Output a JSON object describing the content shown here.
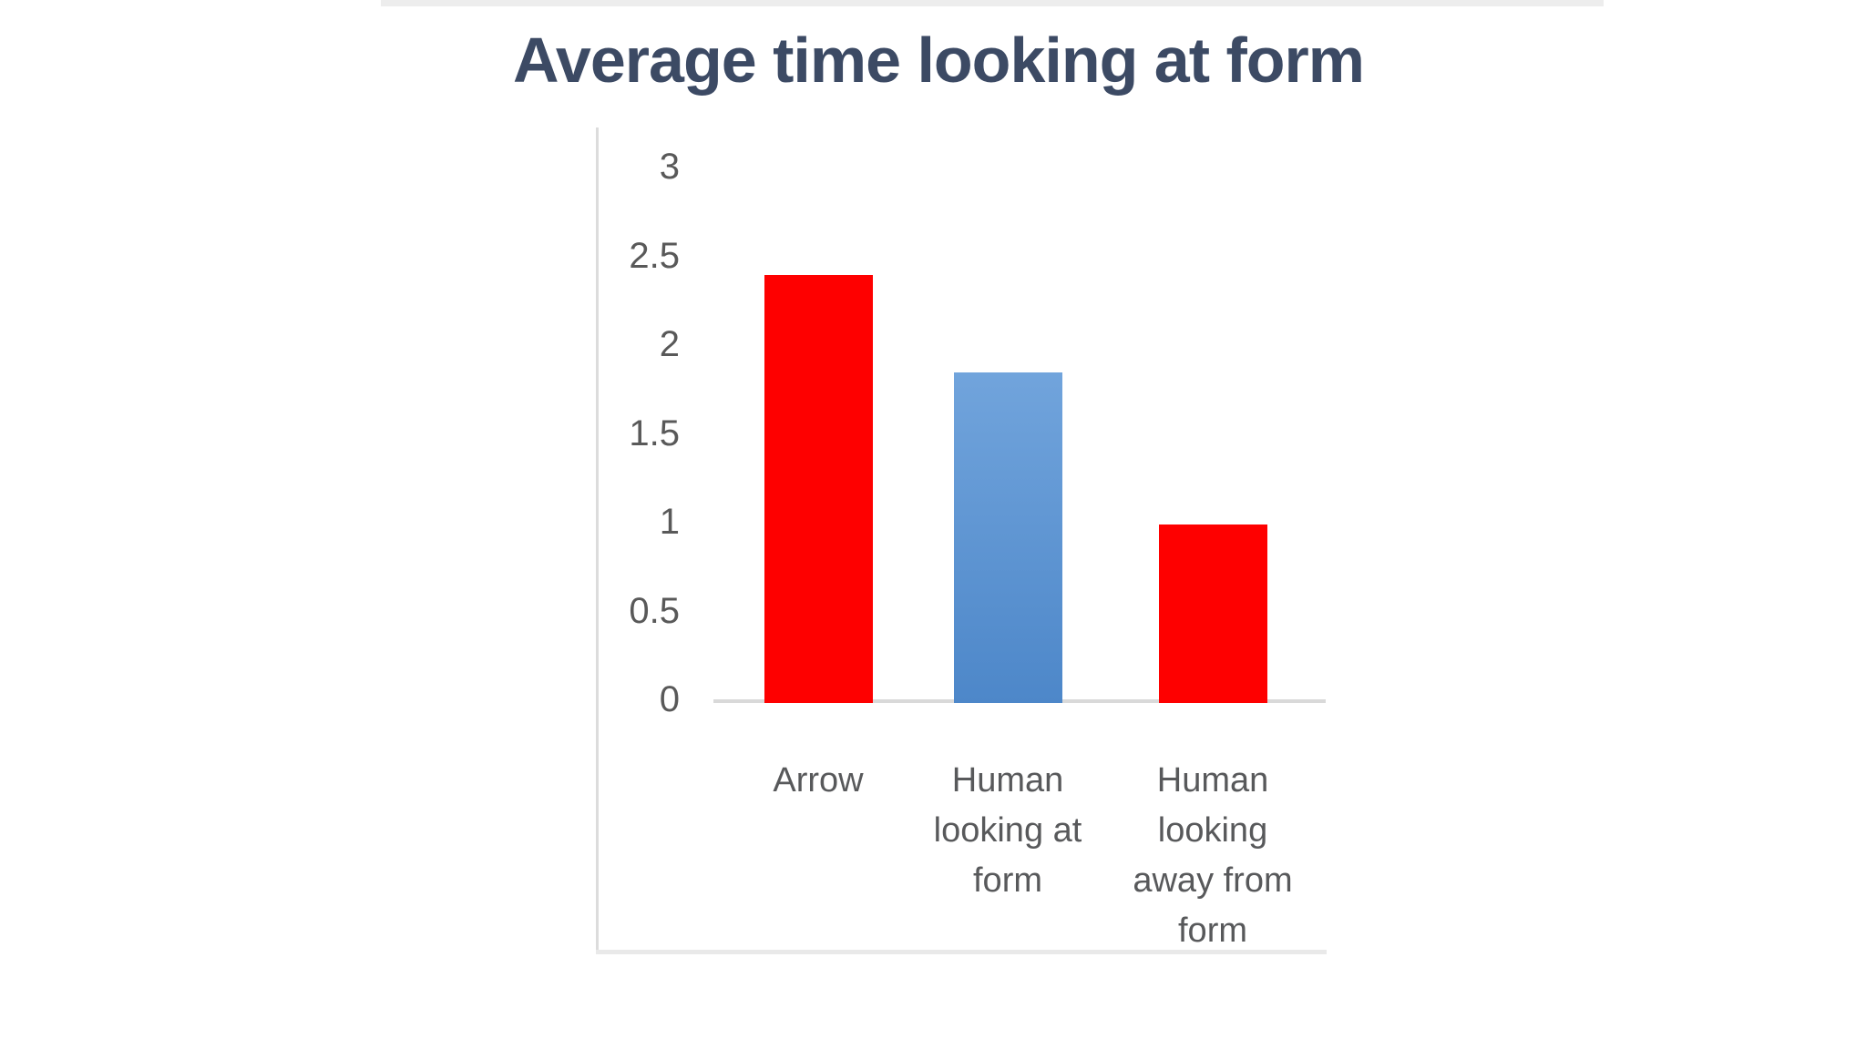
{
  "title": {
    "text": "Average time looking at form"
  },
  "y_axis": {
    "tick_labels": [
      "3",
      "2.5",
      "2",
      "1.5",
      "1",
      "0.5",
      "0"
    ]
  },
  "chart_data": {
    "type": "bar",
    "title": "Average time looking at form",
    "categories": [
      "Arrow",
      "Human looking at form",
      "Human looking away from form"
    ],
    "values": [
      2.4,
      1.85,
      1.0
    ],
    "xlabel": "",
    "ylabel": "",
    "ylim": [
      0,
      3
    ],
    "ytick_interval": 0.5,
    "grid": false,
    "legend": false,
    "bar_styles": [
      {
        "type": "solid",
        "color": "#fe0000"
      },
      {
        "type": "gradient",
        "from": "#71a4dc",
        "to": "#4d87c9"
      },
      {
        "type": "solid",
        "color": "#fe0000"
      }
    ]
  },
  "colors": {
    "title_text": "#3c4a64",
    "axis_text": "#595959",
    "category_text": "#58595b",
    "frame_line": "#dcdcdc",
    "axis_line": "#d9d9d9",
    "red_bar": "#fe0000",
    "blue_bar_top": "#71a4dc",
    "blue_bar_bottom": "#4d87c9"
  }
}
